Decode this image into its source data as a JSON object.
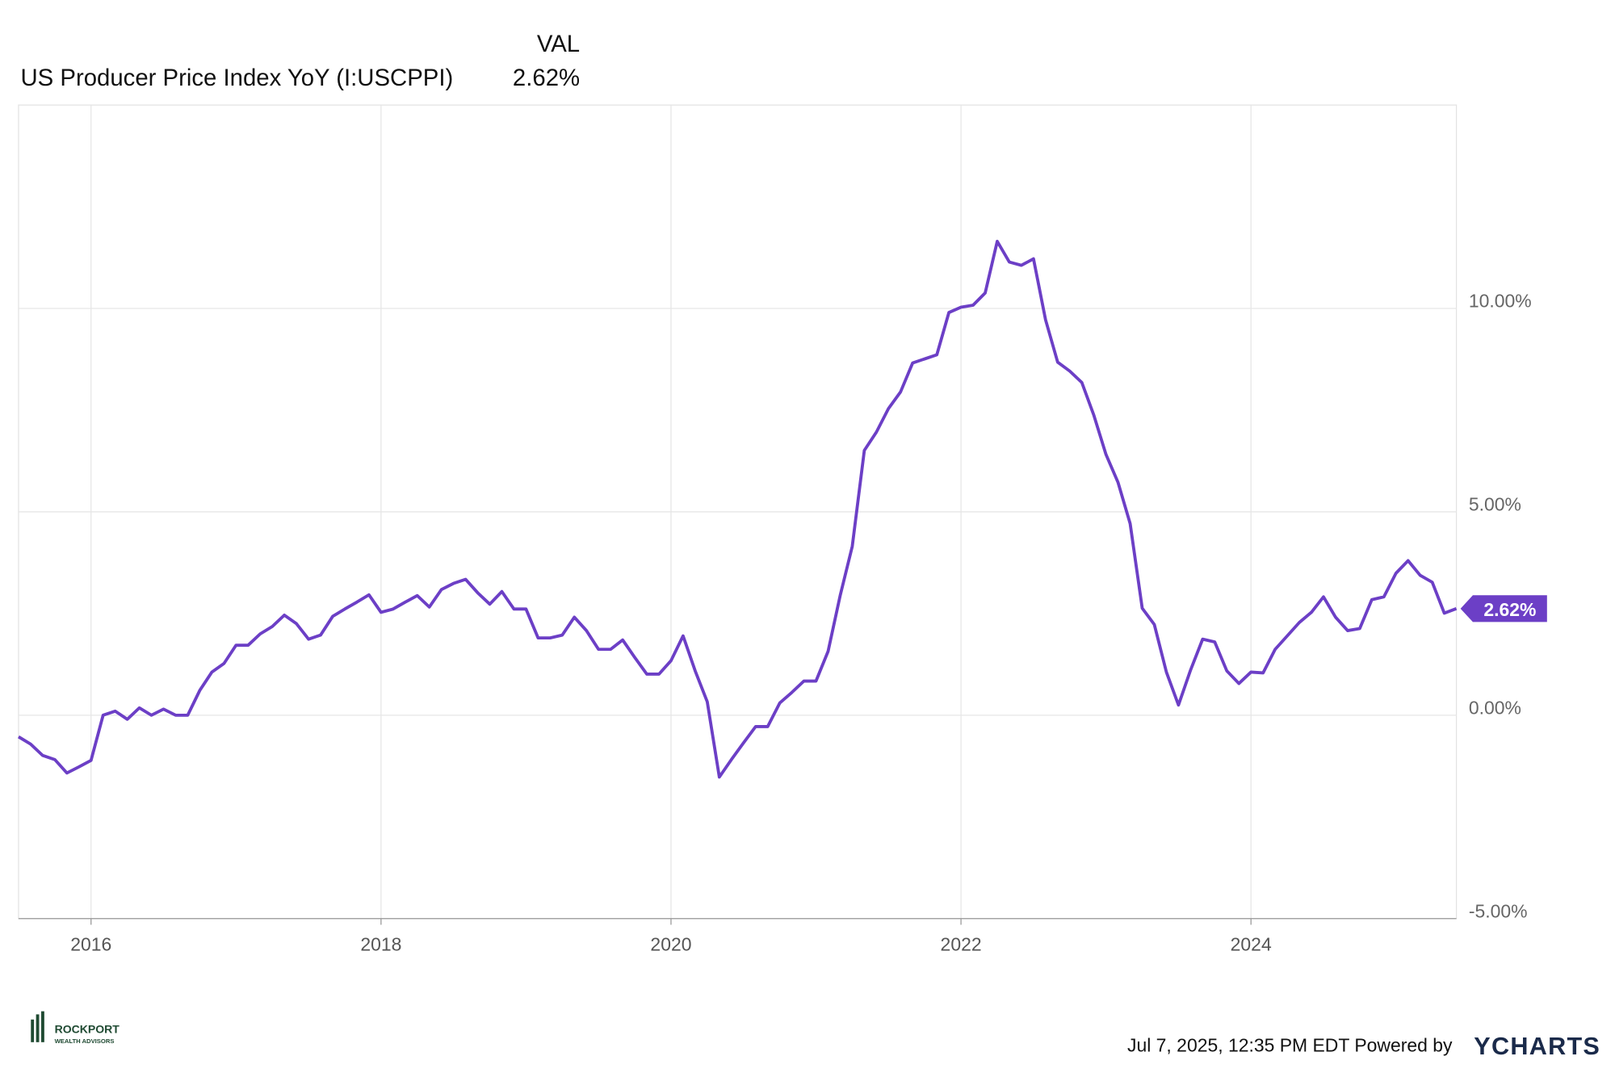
{
  "chart_data": {
    "type": "line",
    "value_header": "VAL",
    "last_value_label": "2.62%",
    "x": [
      "2015-07",
      "2015-08",
      "2015-09",
      "2015-10",
      "2015-11",
      "2015-12",
      "2016-01",
      "2016-02",
      "2016-03",
      "2016-04",
      "2016-05",
      "2016-06",
      "2016-07",
      "2016-08",
      "2016-09",
      "2016-10",
      "2016-11",
      "2016-12",
      "2017-01",
      "2017-02",
      "2017-03",
      "2017-04",
      "2017-05",
      "2017-06",
      "2017-07",
      "2017-08",
      "2017-09",
      "2017-10",
      "2017-11",
      "2017-12",
      "2018-01",
      "2018-02",
      "2018-03",
      "2018-04",
      "2018-05",
      "2018-06",
      "2018-07",
      "2018-08",
      "2018-09",
      "2018-10",
      "2018-11",
      "2018-12",
      "2019-01",
      "2019-02",
      "2019-03",
      "2019-04",
      "2019-05",
      "2019-06",
      "2019-07",
      "2019-08",
      "2019-09",
      "2019-10",
      "2019-11",
      "2019-12",
      "2020-01",
      "2020-02",
      "2020-03",
      "2020-04",
      "2020-05",
      "2020-06",
      "2020-07",
      "2020-08",
      "2020-09",
      "2020-10",
      "2020-11",
      "2020-12",
      "2021-01",
      "2021-02",
      "2021-03",
      "2021-04",
      "2021-05",
      "2021-06",
      "2021-07",
      "2021-08",
      "2021-09",
      "2021-10",
      "2021-11",
      "2021-12",
      "2022-01",
      "2022-02",
      "2022-03",
      "2022-04",
      "2022-05",
      "2022-06",
      "2022-07",
      "2022-08",
      "2022-09",
      "2022-10",
      "2022-11",
      "2022-12",
      "2023-01",
      "2023-02",
      "2023-03",
      "2023-04",
      "2023-05",
      "2023-06",
      "2023-07",
      "2023-08",
      "2023-09",
      "2023-10",
      "2023-11",
      "2023-12",
      "2024-01",
      "2024-02",
      "2024-03",
      "2024-04",
      "2024-05",
      "2024-06",
      "2024-07",
      "2024-08",
      "2024-09",
      "2024-10",
      "2024-11",
      "2024-12",
      "2025-01",
      "2025-02",
      "2025-03",
      "2025-04",
      "2025-05",
      "2025-06"
    ],
    "series": [
      {
        "name": "US Producer Price Index YoY (I:USCPPI)",
        "color": "#6c3fc6",
        "values": [
          -0.53,
          -0.71,
          -0.99,
          -1.09,
          -1.42,
          -1.27,
          -1.11,
          0.0,
          0.1,
          -0.1,
          0.18,
          0.0,
          0.15,
          0.0,
          0.0,
          0.61,
          1.06,
          1.27,
          1.72,
          1.72,
          2.0,
          2.18,
          2.46,
          2.25,
          1.87,
          1.97,
          2.43,
          2.61,
          2.78,
          2.96,
          2.53,
          2.61,
          2.78,
          2.94,
          2.66,
          3.09,
          3.24,
          3.34,
          3.01,
          2.73,
          3.04,
          2.61,
          2.61,
          1.9,
          1.9,
          1.97,
          2.41,
          2.08,
          1.62,
          1.62,
          1.85,
          1.42,
          1.01,
          1.01,
          1.34,
          1.95,
          1.09,
          0.33,
          -1.52,
          -1.09,
          -0.68,
          -0.28,
          -0.28,
          0.3,
          0.56,
          0.84,
          0.84,
          1.57,
          2.94,
          4.15,
          6.51,
          6.96,
          7.54,
          7.95,
          8.66,
          8.76,
          8.86,
          9.9,
          10.03,
          10.08,
          10.38,
          11.65,
          11.14,
          11.06,
          11.22,
          9.72,
          8.68,
          8.46,
          8.18,
          7.37,
          6.41,
          5.72,
          4.71,
          2.63,
          2.23,
          1.06,
          0.25,
          1.11,
          1.87,
          1.8,
          1.09,
          0.78,
          1.06,
          1.04,
          1.62,
          1.95,
          2.28,
          2.53,
          2.91,
          2.41,
          2.08,
          2.13,
          2.84,
          2.91,
          3.49,
          3.8,
          3.44,
          3.27,
          2.51,
          2.62
        ]
      }
    ],
    "xlim": [
      "2015-07",
      "2025-06"
    ],
    "xticks": [
      2016,
      2018,
      2020,
      2022,
      2024
    ],
    "ylim": [
      -5,
      15
    ],
    "yticks": [
      {
        "value": -5,
        "label": "-5.00%"
      },
      {
        "value": 0,
        "label": "0.00%"
      },
      {
        "value": 5,
        "label": "5.00%"
      },
      {
        "value": 10,
        "label": "10.00%"
      }
    ],
    "grid": true
  },
  "footer": {
    "timestamp": "Jul 7, 2025, 12:35 PM EDT Powered by",
    "brand": "YCHARTS",
    "logo": "ROCKPORT",
    "logo_sub": "WEALTH ADVISORS"
  }
}
